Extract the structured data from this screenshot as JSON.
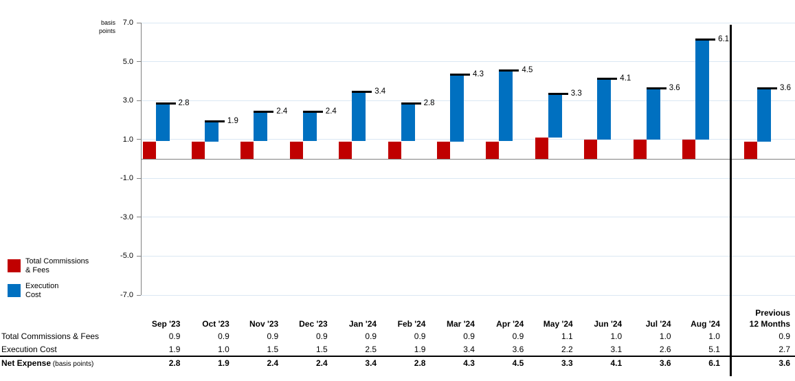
{
  "chart_meta": {
    "basis_label_line1": "basis",
    "basis_label_line2": "points"
  },
  "colors": {
    "commissions_red": "#C00000",
    "execution_blue": "#0070C0",
    "gridline": "#DAE7F3",
    "axis_gray": "#808080",
    "marker_black": "#000000"
  },
  "chart_data": {
    "type": "bar",
    "stacked": true,
    "title": "",
    "ylabel": "basis points",
    "xlabel": "",
    "ylim": [
      -7.0,
      7.0
    ],
    "y_ticks": [
      "7.0",
      "5.0",
      "3.0",
      "1.0",
      "-1.0",
      "-3.0",
      "-5.0",
      "-7.0"
    ],
    "grid": true,
    "legend_position": "left-bottom",
    "categories": [
      "Sep '23",
      "Oct '23",
      "Nov '23",
      "Dec '23",
      "Jan '24",
      "Feb '24",
      "Mar '24",
      "Apr '24",
      "May '24",
      "Jun '24",
      "Jul '24",
      "Aug '24",
      "Previous 12 Months"
    ],
    "series": [
      {
        "name": "Total Commissions & Fees",
        "color": "#C00000",
        "values": [
          0.9,
          0.9,
          0.9,
          0.9,
          0.9,
          0.9,
          0.9,
          0.9,
          1.1,
          1.0,
          1.0,
          1.0,
          0.9
        ]
      },
      {
        "name": "Execution Cost",
        "color": "#0070C0",
        "values": [
          1.9,
          1.0,
          1.5,
          1.5,
          2.5,
          1.9,
          3.4,
          3.6,
          2.2,
          3.1,
          2.6,
          5.1,
          2.7
        ]
      }
    ],
    "totals": [
      2.8,
      1.9,
      2.4,
      2.4,
      3.4,
      2.8,
      4.3,
      4.5,
      3.3,
      4.1,
      3.6,
      6.1,
      3.6
    ],
    "total_labels": [
      "2.8",
      "1.9",
      "2.4",
      "2.4",
      "3.4",
      "2.8",
      "4.3",
      "4.5",
      "3.3",
      "4.1",
      "3.6",
      "6.1",
      "3.6"
    ],
    "annotations": "black dash marker with value label at each stacked total; vertical black divider separates monthly bars from Previous 12 Months bar"
  },
  "legend": {
    "items": [
      {
        "line1": "Total Commissions",
        "line2": "& Fees",
        "color": "#C00000"
      },
      {
        "line1": "Execution",
        "line2": "Cost",
        "color": "#0070C0"
      }
    ]
  },
  "table": {
    "header": {
      "months": [
        "Sep '23",
        "Oct '23",
        "Nov '23",
        "Dec '23",
        "Jan '24",
        "Feb '24",
        "Mar '24",
        "Apr '24",
        "May '24",
        "Jun '24",
        "Jul '24",
        "Aug '24"
      ],
      "previous_line1": "Previous",
      "previous_line2": "12 Months"
    },
    "rows": [
      {
        "label": "Total Commissions & Fees",
        "suffix": "",
        "bold": false,
        "values": [
          "0.9",
          "0.9",
          "0.9",
          "0.9",
          "0.9",
          "0.9",
          "0.9",
          "0.9",
          "1.1",
          "1.0",
          "1.0",
          "1.0"
        ],
        "previous": "0.9"
      },
      {
        "label": "Execution Cost",
        "suffix": "",
        "bold": false,
        "values": [
          "1.9",
          "1.0",
          "1.5",
          "1.5",
          "2.5",
          "1.9",
          "3.4",
          "3.6",
          "2.2",
          "3.1",
          "2.6",
          "5.1"
        ],
        "previous": "2.7"
      },
      {
        "label": "Net Expense",
        "suffix": "(basis points)",
        "bold": true,
        "values": [
          "2.8",
          "1.9",
          "2.4",
          "2.4",
          "3.4",
          "2.8",
          "4.3",
          "4.5",
          "3.3",
          "4.1",
          "3.6",
          "6.1"
        ],
        "previous": "3.6"
      }
    ]
  }
}
